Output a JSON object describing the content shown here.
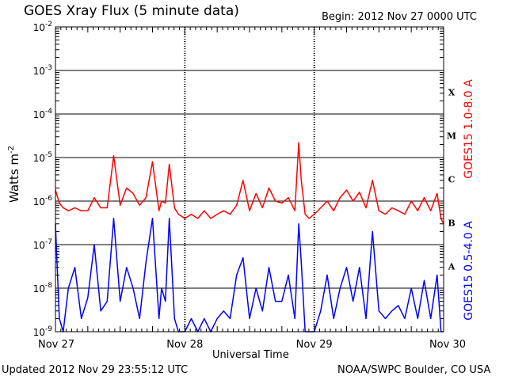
{
  "title": "GOES Xray Flux (5 minute data)",
  "begin_label": "Begin:  2012 Nov 27 0000 UTC",
  "footer": {
    "updated": "Updated 2012 Nov 29 23:55:12 UTC",
    "credit": "NOAA/SWPC Boulder, CO USA"
  },
  "colors": {
    "long": "#ff0000",
    "short": "#0000ff",
    "axis": "#000000"
  },
  "chart_data": {
    "type": "line",
    "ylabel_base": "Watts m",
    "ylabel_exp": "-2",
    "xlabel": "Universal Time",
    "log_scale": true,
    "ylim_exp": [
      -9,
      -2
    ],
    "xlim_days": [
      0,
      3
    ],
    "yticks": [
      {
        "base": "10",
        "exp": "-2",
        "e": -2
      },
      {
        "base": "10",
        "exp": "-3",
        "e": -3
      },
      {
        "base": "10",
        "exp": "-4",
        "e": -4
      },
      {
        "base": "10",
        "exp": "-5",
        "e": -5
      },
      {
        "base": "10",
        "exp": "-6",
        "e": -6
      },
      {
        "base": "10",
        "exp": "-7",
        "e": -7
      },
      {
        "base": "10",
        "exp": "-8",
        "e": -8
      },
      {
        "base": "10",
        "exp": "-9",
        "e": -9
      }
    ],
    "xticks": [
      {
        "label": "Nov 27",
        "day": 0
      },
      {
        "label": "Nov 28",
        "day": 1
      },
      {
        "label": "Nov 29",
        "day": 2
      },
      {
        "label": "Nov 30",
        "day": 3
      }
    ],
    "flare_classes": [
      {
        "label": "X",
        "e": -3.5
      },
      {
        "label": "M",
        "e": -4.5
      },
      {
        "label": "C",
        "e": -5.5
      },
      {
        "label": "B",
        "e": -6.5
      },
      {
        "label": "A",
        "e": -7.5
      }
    ],
    "series": [
      {
        "name": "GOES15 1.0-8.0 A",
        "color": "#ff0000",
        "x": [
          0.0,
          0.03,
          0.06,
          0.1,
          0.15,
          0.2,
          0.25,
          0.3,
          0.35,
          0.4,
          0.45,
          0.5,
          0.55,
          0.6,
          0.65,
          0.7,
          0.75,
          0.8,
          0.82,
          0.85,
          0.88,
          0.92,
          0.95,
          1.0,
          1.05,
          1.1,
          1.15,
          1.2,
          1.25,
          1.3,
          1.35,
          1.4,
          1.45,
          1.5,
          1.55,
          1.6,
          1.65,
          1.7,
          1.75,
          1.8,
          1.85,
          1.88,
          1.9,
          1.93,
          1.96,
          2.0,
          2.05,
          2.1,
          2.15,
          2.2,
          2.25,
          2.3,
          2.35,
          2.4,
          2.45,
          2.5,
          2.55,
          2.6,
          2.65,
          2.7,
          2.75,
          2.8,
          2.85,
          2.9,
          2.95,
          2.98,
          3.0
        ],
        "y": [
          1.8e-06,
          9e-07,
          7e-07,
          6e-07,
          7e-07,
          6e-07,
          6e-07,
          1.2e-06,
          7e-07,
          7e-07,
          1.1e-05,
          8e-07,
          2e-06,
          1.5e-06,
          8e-07,
          1.2e-06,
          8e-06,
          6e-07,
          1e-06,
          9e-07,
          7e-06,
          7e-07,
          5e-07,
          4e-07,
          5e-07,
          4e-07,
          6e-07,
          4e-07,
          5e-07,
          6e-07,
          5e-07,
          8e-07,
          3e-06,
          6e-07,
          1.5e-06,
          7e-07,
          2e-06,
          1e-06,
          9e-07,
          1.2e-06,
          6e-07,
          2.2e-05,
          3e-06,
          5e-07,
          4e-07,
          5e-07,
          7e-07,
          1e-06,
          6e-07,
          1.2e-06,
          1.8e-06,
          1e-06,
          1.6e-06,
          7e-07,
          3e-06,
          6e-07,
          5e-07,
          7e-07,
          6e-07,
          5e-07,
          1e-06,
          6e-07,
          1.2e-06,
          6e-07,
          1.5e-06,
          4e-07,
          3e-07
        ]
      },
      {
        "name": "GOES15 0.5-4.0 A",
        "color": "#0000ff",
        "x": [
          0.0,
          0.03,
          0.06,
          0.1,
          0.15,
          0.2,
          0.25,
          0.3,
          0.35,
          0.4,
          0.45,
          0.5,
          0.55,
          0.6,
          0.65,
          0.7,
          0.75,
          0.8,
          0.82,
          0.85,
          0.88,
          0.92,
          0.95,
          1.0,
          1.05,
          1.1,
          1.15,
          1.2,
          1.25,
          1.3,
          1.35,
          1.4,
          1.45,
          1.5,
          1.55,
          1.6,
          1.65,
          1.7,
          1.75,
          1.8,
          1.85,
          1.88,
          1.9,
          1.93,
          1.96,
          2.0,
          2.05,
          2.1,
          2.15,
          2.2,
          2.25,
          2.3,
          2.35,
          2.4,
          2.45,
          2.5,
          2.55,
          2.6,
          2.65,
          2.7,
          2.75,
          2.8,
          2.85,
          2.9,
          2.95,
          2.98,
          3.0
        ],
        "y": [
          3e-07,
          2e-09,
          1e-09,
          1e-08,
          3e-08,
          2e-09,
          6e-09,
          1e-07,
          3e-09,
          5e-09,
          4e-07,
          5e-09,
          3e-08,
          1e-08,
          2e-09,
          4e-08,
          4e-07,
          2e-09,
          1e-08,
          5e-09,
          4e-07,
          2e-09,
          1e-09,
          1e-09,
          2e-09,
          1e-09,
          2e-09,
          1e-09,
          2e-09,
          3e-09,
          2e-09,
          2e-08,
          5e-08,
          2e-09,
          1e-08,
          3e-09,
          3e-08,
          5e-09,
          5e-09,
          2e-08,
          2e-09,
          3e-07,
          4e-08,
          1e-09,
          1e-09,
          1e-09,
          3e-09,
          2e-08,
          2e-09,
          1e-08,
          3e-08,
          5e-09,
          3e-08,
          2e-09,
          2e-07,
          3e-09,
          2e-09,
          3e-09,
          4e-09,
          2e-09,
          1e-08,
          2e-09,
          1.5e-08,
          2e-09,
          2e-08,
          1e-09,
          1e-09
        ]
      }
    ]
  }
}
